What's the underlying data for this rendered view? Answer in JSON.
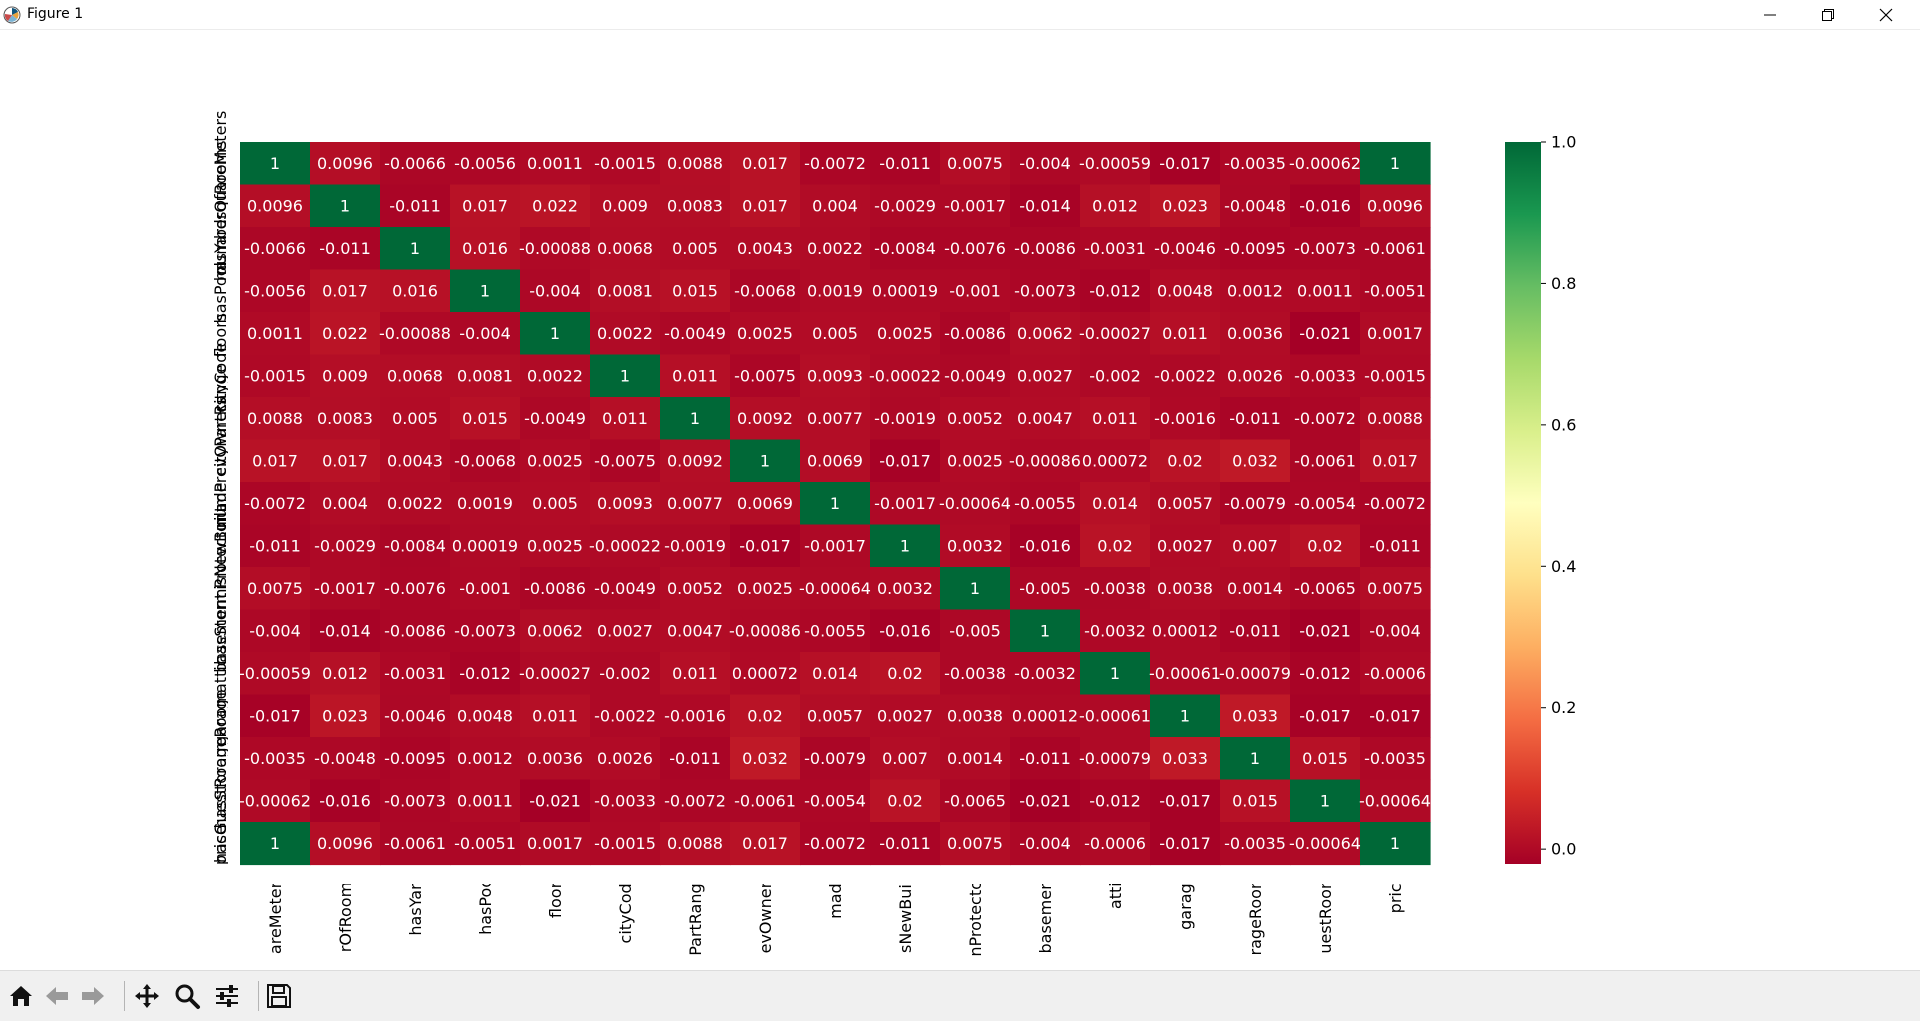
{
  "window": {
    "title": "Figure 1"
  },
  "icons": {
    "app": "matplotlib-logo-icon",
    "minimize": "minimize-icon",
    "restore": "restore-icon",
    "close": "close-icon",
    "home": "home-icon",
    "back": "arrow-left-icon",
    "forward": "arrow-right-icon",
    "pan": "move-icon",
    "zoom": "magnifier-icon",
    "configure": "sliders-icon",
    "save": "floppy-disk-icon"
  },
  "chart_data": {
    "type": "heatmap",
    "title": "",
    "xlabel": "",
    "ylabel": "",
    "x_tick_labels": [
      "areMeters",
      "rOfRooms",
      "hasYard",
      "hasPool",
      "floors",
      "cityCode",
      "PartRange",
      "evOwners",
      "made",
      "sNewBuilt",
      "nProtector",
      "basement",
      "attic",
      "garage",
      "rageRoom",
      "uestRoom",
      "price"
    ],
    "y_tick_labels": [
      "squareMeters",
      "numberOfRooms",
      "hasYard",
      "hasPool",
      "floors",
      "cityCode",
      "cityPartRange",
      "numPrevOwners",
      "made",
      "isNewBuilt",
      "hasStormProtector",
      "basement",
      "attic",
      "garage",
      "hasStorageRoom",
      "hasGuestRoom",
      "price"
    ],
    "values": [
      [
        "1",
        "0.0096",
        "-0.0066",
        "-0.0056",
        "0.0011",
        "-0.0015",
        "0.0088",
        "0.017",
        "-0.0072",
        "-0.011",
        "0.0075",
        "-0.004",
        "-0.00059",
        "-0.017",
        "-0.0035",
        "-0.00062",
        "1"
      ],
      [
        "0.0096",
        "1",
        "-0.011",
        "0.017",
        "0.022",
        "0.009",
        "0.0083",
        "0.017",
        "0.004",
        "-0.0029",
        "-0.0017",
        "-0.014",
        "0.012",
        "0.023",
        "-0.0048",
        "-0.016",
        "0.0096"
      ],
      [
        "-0.0066",
        "-0.011",
        "1",
        "0.016",
        "-0.00088",
        "0.0068",
        "0.005",
        "0.0043",
        "0.0022",
        "-0.0084",
        "-0.0076",
        "-0.0086",
        "-0.0031",
        "-0.0046",
        "-0.0095",
        "-0.0073",
        "-0.0061"
      ],
      [
        "-0.0056",
        "0.017",
        "0.016",
        "1",
        "-0.004",
        "0.0081",
        "0.015",
        "-0.0068",
        "0.0019",
        "0.00019",
        "-0.001",
        "-0.0073",
        "-0.012",
        "0.0048",
        "0.0012",
        "0.0011",
        "-0.0051"
      ],
      [
        "0.0011",
        "0.022",
        "-0.00088",
        "-0.004",
        "1",
        "0.0022",
        "-0.0049",
        "0.0025",
        "0.005",
        "0.0025",
        "-0.0086",
        "0.0062",
        "-0.00027",
        "0.011",
        "0.0036",
        "-0.021",
        "0.0017"
      ],
      [
        "-0.0015",
        "0.009",
        "0.0068",
        "0.0081",
        "0.0022",
        "1",
        "0.011",
        "-0.0075",
        "0.0093",
        "-0.00022",
        "-0.0049",
        "0.0027",
        "-0.002",
        "-0.0022",
        "0.0026",
        "-0.0033",
        "-0.0015"
      ],
      [
        "0.0088",
        "0.0083",
        "0.005",
        "0.015",
        "-0.0049",
        "0.011",
        "1",
        "0.0092",
        "0.0077",
        "-0.0019",
        "0.0052",
        "0.0047",
        "0.011",
        "-0.0016",
        "-0.011",
        "-0.0072",
        "0.0088"
      ],
      [
        "0.017",
        "0.017",
        "0.0043",
        "-0.0068",
        "0.0025",
        "-0.0075",
        "0.0092",
        "1",
        "0.0069",
        "-0.017",
        "0.0025",
        "-0.00086",
        "0.00072",
        "0.02",
        "0.032",
        "-0.0061",
        "0.017"
      ],
      [
        "-0.0072",
        "0.004",
        "0.0022",
        "0.0019",
        "0.005",
        "0.0093",
        "0.0077",
        "0.0069",
        "1",
        "-0.0017",
        "-0.00064",
        "-0.0055",
        "0.014",
        "0.0057",
        "-0.0079",
        "-0.0054",
        "-0.0072"
      ],
      [
        "-0.011",
        "-0.0029",
        "-0.0084",
        "0.00019",
        "0.0025",
        "-0.00022",
        "-0.0019",
        "-0.017",
        "-0.0017",
        "1",
        "0.0032",
        "-0.016",
        "0.02",
        "0.0027",
        "0.007",
        "0.02",
        "-0.011"
      ],
      [
        "0.0075",
        "-0.0017",
        "-0.0076",
        "-0.001",
        "-0.0086",
        "-0.0049",
        "0.0052",
        "0.0025",
        "-0.00064",
        "0.0032",
        "1",
        "-0.005",
        "-0.0038",
        "0.0038",
        "0.0014",
        "-0.0065",
        "0.0075"
      ],
      [
        "-0.004",
        "-0.014",
        "-0.0086",
        "-0.0073",
        "0.0062",
        "0.0027",
        "0.0047",
        "-0.00086",
        "-0.0055",
        "-0.016",
        "-0.005",
        "1",
        "-0.0032",
        "0.00012",
        "-0.011",
        "-0.021",
        "-0.004"
      ],
      [
        "-0.00059",
        "0.012",
        "-0.0031",
        "-0.012",
        "-0.00027",
        "-0.002",
        "0.011",
        "0.00072",
        "0.014",
        "0.02",
        "-0.0038",
        "-0.0032",
        "1",
        "-0.00061",
        "-0.00079",
        "-0.012",
        "-0.0006"
      ],
      [
        "-0.017",
        "0.023",
        "-0.0046",
        "0.0048",
        "0.011",
        "-0.0022",
        "-0.0016",
        "0.02",
        "0.0057",
        "0.0027",
        "0.0038",
        "0.00012",
        "-0.00061",
        "1",
        "0.033",
        "-0.017",
        "-0.017"
      ],
      [
        "-0.0035",
        "-0.0048",
        "-0.0095",
        "0.0012",
        "0.0036",
        "0.0026",
        "-0.011",
        "0.032",
        "-0.0079",
        "0.007",
        "0.0014",
        "-0.011",
        "-0.00079",
        "0.033",
        "1",
        "0.015",
        "-0.0035"
      ],
      [
        "-0.00062",
        "-0.016",
        "-0.0073",
        "0.0011",
        "-0.021",
        "-0.0033",
        "-0.0072",
        "-0.0061",
        "-0.0054",
        "0.02",
        "-0.0065",
        "-0.021",
        "-0.012",
        "-0.017",
        "0.015",
        "1",
        "-0.00064"
      ],
      [
        "1",
        "0.0096",
        "-0.0061",
        "-0.0051",
        "0.0017",
        "-0.0015",
        "0.0088",
        "0.017",
        "-0.0072",
        "-0.011",
        "0.0075",
        "-0.004",
        "-0.0006",
        "-0.017",
        "-0.0035",
        "-0.00064",
        "1"
      ]
    ],
    "colormap": "RdYlGn",
    "colorbar": {
      "ticks": [
        "0.0",
        "0.2",
        "0.4",
        "0.6",
        "0.8",
        "1.0"
      ],
      "range": [
        -0.021,
        1.0
      ]
    },
    "grid": false,
    "legend": "colorbar-right"
  }
}
